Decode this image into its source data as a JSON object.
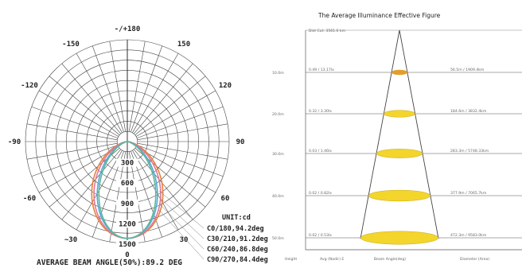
{
  "polar": {
    "angle_labels": [
      {
        "text": "-/+180",
        "deg": 180
      },
      {
        "text": "150",
        "deg": 150
      },
      {
        "text": "-150",
        "deg": -150
      },
      {
        "text": "120",
        "deg": 120
      },
      {
        "text": "-120",
        "deg": -120
      },
      {
        "text": "90",
        "deg": 90
      },
      {
        "text": "-90",
        "deg": -90
      },
      {
        "text": "60",
        "deg": 60
      },
      {
        "text": "-60",
        "deg": -60
      },
      {
        "text": "30",
        "deg": 30
      },
      {
        "text": "~30",
        "deg": -30
      },
      {
        "text": "0",
        "deg": 0
      }
    ],
    "radial_labels": [
      "300",
      "600",
      "900",
      "1200",
      "1500"
    ],
    "radial_max": 1500,
    "unit_label": "UNIT:cd",
    "series": [
      {
        "label": "C0/180,94.2deg",
        "color": "#e8813a",
        "beam_deg": 94.2
      },
      {
        "label": "C30/210,91.2deg",
        "color": "#e07a9a",
        "beam_deg": 91.2
      },
      {
        "label": "C60/240,86.8deg",
        "color": "#5aa9d6",
        "beam_deg": 86.8
      },
      {
        "label": "C90/270,84.4deg",
        "color": "#5bb89a",
        "beam_deg": 84.4
      }
    ],
    "beam_angle_text": "AVERAGE BEAM ANGLE(50%):89.2 DEG"
  },
  "illuminance": {
    "title": "The Average Illuminance Effective Figure",
    "top_label": "Dist Cut: 3561.6 km",
    "rows": [
      {
        "height": "10.0m",
        "left": "0.49 / 13.17lx",
        "right": "56.5m / 1909.4km"
      },
      {
        "height": "20.0m",
        "left": "0.32 / 3.30lx",
        "right": "184.6m / 3832.4km"
      },
      {
        "height": "30.0m",
        "left": "0.03 / 1.46lx",
        "right": "283.3m / 5748.33km"
      },
      {
        "height": "40.0m",
        "left": "0.02 / 0.82lx",
        "right": "377.9m / 7065.7km"
      },
      {
        "height": "50.0m",
        "left": "0.02 / 0.53lx",
        "right": "472.3m / 9583.0km"
      }
    ],
    "footer": {
      "height": "Height",
      "avg": "Avg (Nadir) E",
      "beam": "Beam Angle(deg)",
      "diameter": "Diameter (Area)"
    },
    "ellipse_color": "#f3d52c",
    "ellipse_top_color": "#e89a33"
  }
}
